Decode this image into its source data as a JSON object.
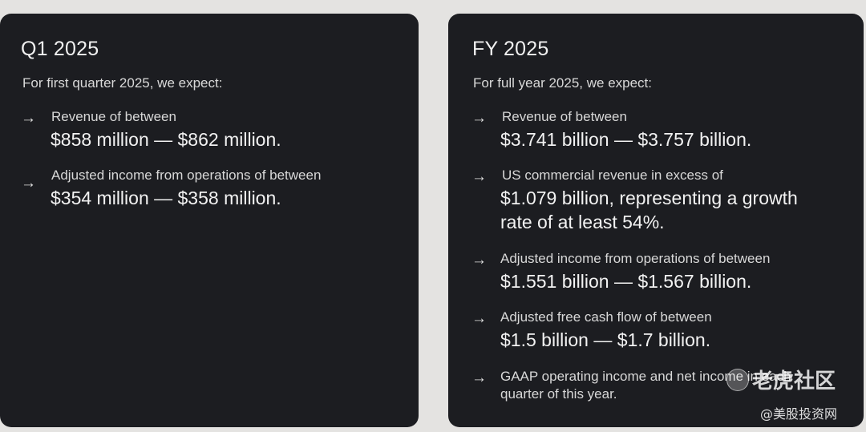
{
  "q1": {
    "title": "Q1 2025",
    "subtitle": "For first quarter 2025, we expect:",
    "items": [
      {
        "label": "Revenue of between",
        "value": "$858 million — $862 million."
      },
      {
        "label": "Adjusted income from operations of between",
        "value": "$354 million — $358 million."
      }
    ]
  },
  "fy": {
    "title": "FY 2025",
    "subtitle": "For full year 2025, we expect:",
    "items": [
      {
        "label": "Revenue of between",
        "value": "$3.741 billion — $3.757 billion."
      },
      {
        "label": "US commercial revenue in excess of",
        "value_line1": "$1.079 billion, representing a growth",
        "value_line2": "rate of at least 54%."
      },
      {
        "label": "Adjusted income from operations of between",
        "value": "$1.551 billion — $1.567 billion."
      },
      {
        "label": "Adjusted free cash flow of between",
        "value": "$1.5 billion — $1.7 billion."
      },
      {
        "label_line1": "GAAP operating income and net income in each",
        "label_line2": "quarter of this year."
      }
    ]
  },
  "arrow_glyph": "→",
  "watermark": {
    "main": "老虎社区",
    "sub": "@美股投资网"
  }
}
